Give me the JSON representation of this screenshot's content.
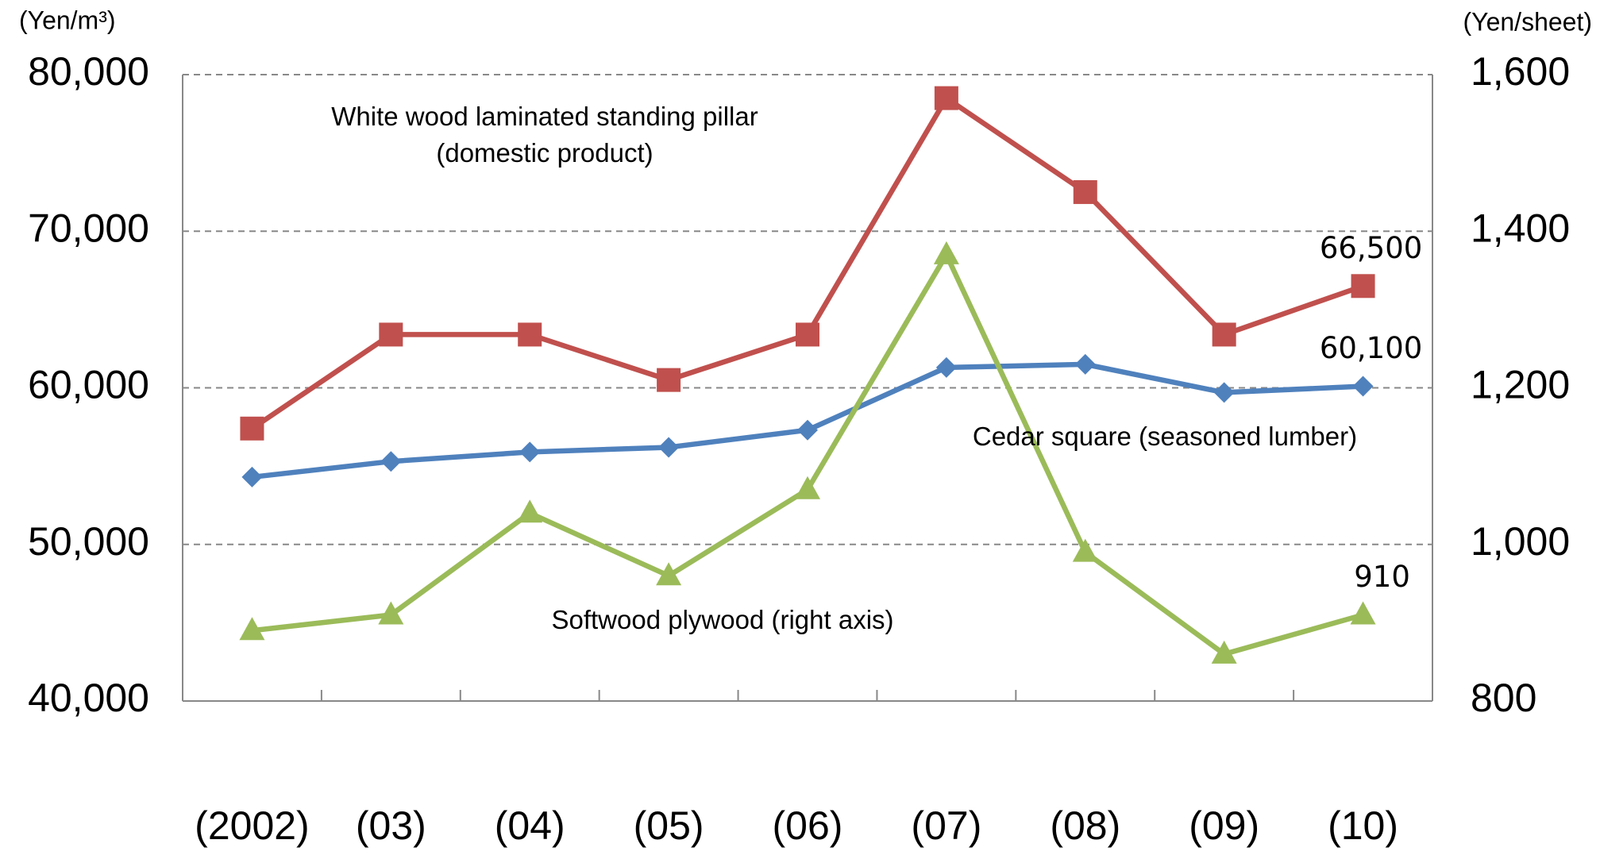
{
  "chart_data": {
    "type": "line",
    "y_unit_label": "(Yen/m³)",
    "y2_unit_label": "(Yen/sheet)",
    "categories": [
      "(2002)",
      "(03)",
      "(04)",
      "(05)",
      "(06)",
      "(07)",
      "(08)",
      "(09)",
      "(10)"
    ],
    "series": [
      {
        "name": "White wood laminated standing pillar (domestic product)",
        "color": "#c0504d",
        "marker": "square",
        "values": [
          57400,
          63400,
          63400,
          60500,
          63400,
          78500,
          72500,
          63400,
          66500
        ],
        "value_labels": [
          null,
          null,
          null,
          null,
          null,
          null,
          null,
          null,
          "66,500"
        ]
      },
      {
        "name": "Cedar square (seasoned lumber)",
        "color": "#4f81bd",
        "marker": "diamond",
        "values": [
          54300,
          55300,
          55900,
          56200,
          57300,
          61300,
          61500,
          59700,
          60100
        ],
        "value_labels": [
          null,
          null,
          null,
          null,
          null,
          null,
          null,
          null,
          "60,100"
        ]
      },
      {
        "name": "Softwood plywood (right axis)",
        "color": "#9bbb59",
        "marker": "triangle",
        "axis": "y2",
        "values": [
          890,
          910,
          1040,
          960,
          1070,
          1370,
          990,
          860,
          910
        ],
        "value_labels": [
          null,
          null,
          null,
          null,
          null,
          null,
          null,
          null,
          "910"
        ]
      }
    ],
    "ylim": [
      40000,
      80000
    ],
    "yticks": [
      {
        "value": 40000,
        "label": "40,000"
      },
      {
        "value": 50000,
        "label": "50,000"
      },
      {
        "value": 60000,
        "label": "60,000"
      },
      {
        "value": 70000,
        "label": "70,000"
      },
      {
        "value": 80000,
        "label": "80,000"
      }
    ],
    "y2lim": [
      800,
      1600
    ],
    "y2ticks": [
      800,
      {
        "value": 1000,
        "label": "1,000"
      },
      {
        "value": 1200,
        "label": "1,200"
      },
      {
        "value": 1400,
        "label": "1,400"
      },
      {
        "value": 1600,
        "label": "1,600"
      }
    ],
    "grid": true
  }
}
